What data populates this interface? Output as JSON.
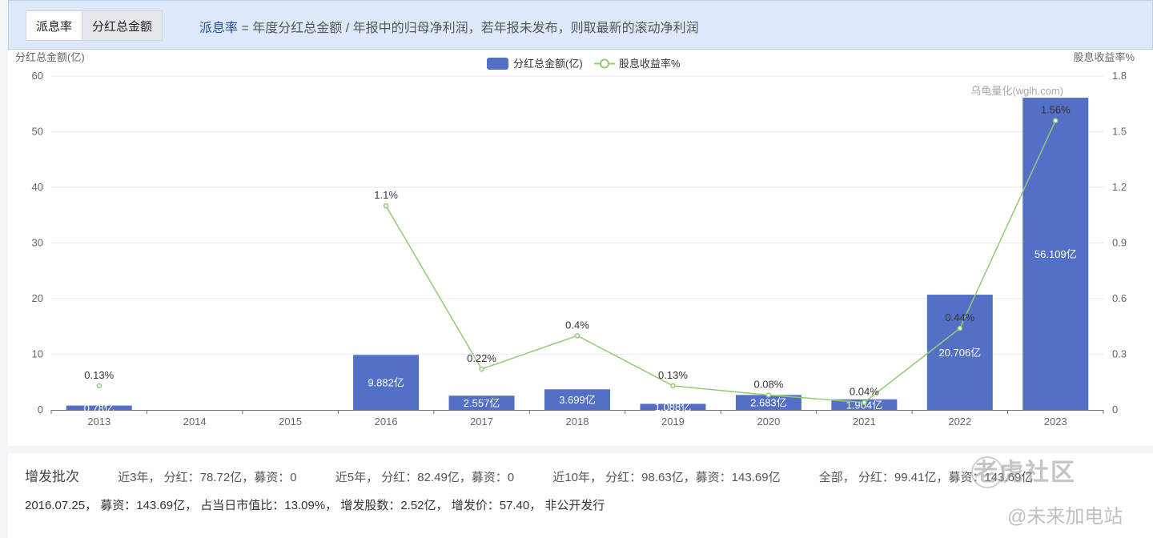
{
  "tabs": [
    {
      "label": "派息率",
      "active": true
    },
    {
      "label": "分红总金额",
      "active": false
    }
  ],
  "description": {
    "term": "派息率",
    "text": " = 年度分红总金额 / 年报中的归母净利润，若年报未发布，则取最新的滚动净利润"
  },
  "chart_data": {
    "type": "bar",
    "categories": [
      "2013",
      "2014",
      "2015",
      "2016",
      "2017",
      "2018",
      "2019",
      "2020",
      "2021",
      "2022",
      "2023"
    ],
    "series": [
      {
        "name": "分红总金额(亿)",
        "type": "bar",
        "axis": "left",
        "color": "#5470c6",
        "values": [
          0.78,
          null,
          null,
          9.882,
          2.557,
          3.699,
          1.088,
          2.683,
          1.904,
          20.706,
          56.109
        ],
        "labels": [
          "0.78亿",
          "",
          "",
          "9.882亿",
          "2.557亿",
          "3.699亿",
          "1.088亿",
          "2.683亿",
          "1.904亿",
          "20.706亿",
          "56.109亿"
        ]
      },
      {
        "name": "股息收益率%",
        "type": "line",
        "axis": "right",
        "color": "#91cc75",
        "values": [
          0.13,
          null,
          null,
          1.1,
          0.22,
          0.4,
          0.13,
          0.08,
          0.04,
          0.44,
          1.56
        ],
        "labels": [
          "0.13%",
          "",
          "",
          "1.1%",
          "0.22%",
          "0.4%",
          "0.13%",
          "0.08%",
          "0.04%",
          "0.44%",
          "1.56%"
        ]
      }
    ],
    "ylabel_left": "分红总金额(亿)",
    "ylabel_right": "股息收益率%",
    "ylim_left": [
      0,
      60
    ],
    "yticks_left": [
      "0",
      "10",
      "20",
      "30",
      "40",
      "50",
      "60"
    ],
    "ylim_right": [
      0,
      1.8
    ],
    "yticks_right": [
      "0",
      "0.3",
      "0.6",
      "0.9",
      "1.2",
      "1.5",
      "1.8"
    ],
    "grid": true,
    "legend": "top-center",
    "watermark": "乌龟量化(wglh.com)"
  },
  "footer": {
    "title": "增发批次",
    "summaries": [
      "近3年， 分红：78.72亿，募资：0",
      "近5年， 分红：82.49亿，募资：0",
      "近10年， 分红：98.63亿，募资：143.69亿",
      "全部， 分红：99.41亿，募资：143.69亿"
    ],
    "detail": "2016.07.25， 募资：143.69亿， 占当日市值比：13.09%， 增发股数：2.52亿， 增发价：57.40， 非公开发行"
  },
  "watermarks": {
    "community": "老虎社区",
    "station": "@未来加电站"
  }
}
